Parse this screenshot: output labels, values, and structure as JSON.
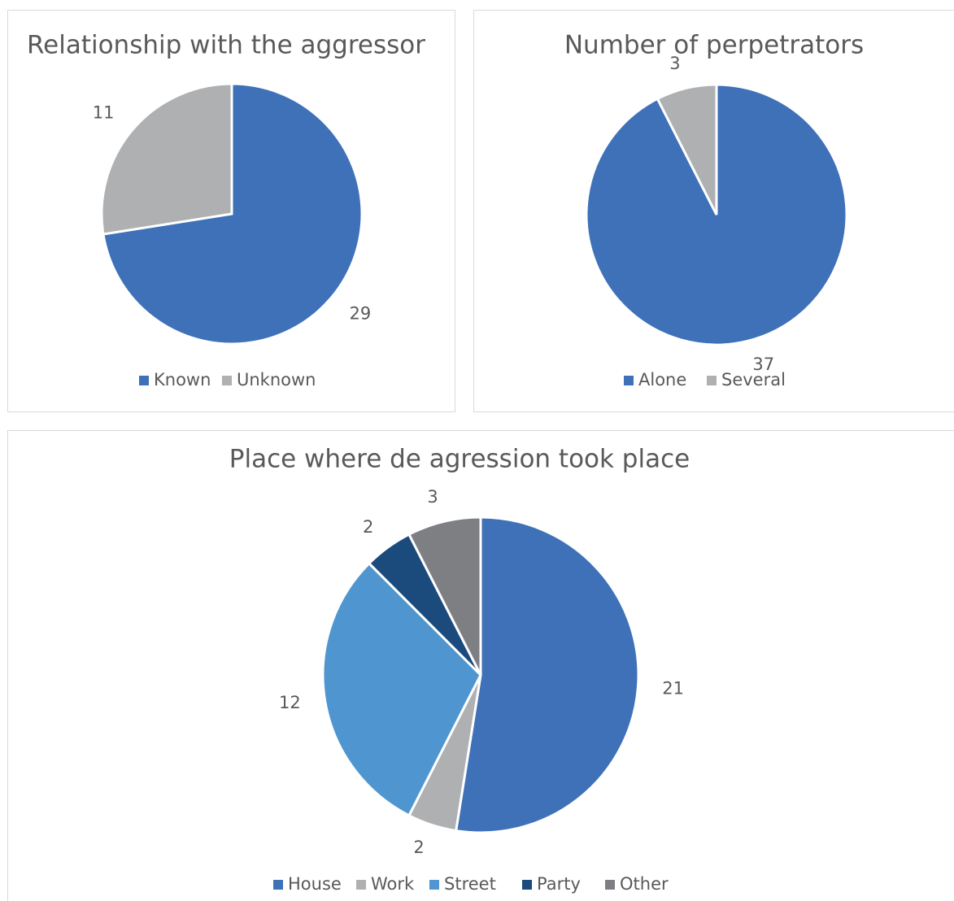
{
  "chart_data": [
    {
      "type": "pie",
      "title": "Relationship with the aggressor",
      "categories": [
        "Known",
        "Unknown"
      ],
      "values": [
        29,
        11
      ],
      "colors": [
        "#3f71b9",
        "#afb0b2"
      ]
    },
    {
      "type": "pie",
      "title": "Number of perpetrators",
      "categories": [
        "Alone",
        "Several"
      ],
      "values": [
        37,
        3
      ],
      "colors": [
        "#3f71b9",
        "#afb0b2"
      ]
    },
    {
      "type": "pie",
      "title": "Place where de agression took place",
      "categories": [
        "House",
        "Work",
        "Street",
        "Party",
        "Other"
      ],
      "values": [
        21,
        2,
        12,
        2,
        3
      ],
      "colors": [
        "#3f71b9",
        "#afb0b2",
        "#4f96d1",
        "#1b4a7c",
        "#7e7f83"
      ]
    }
  ]
}
